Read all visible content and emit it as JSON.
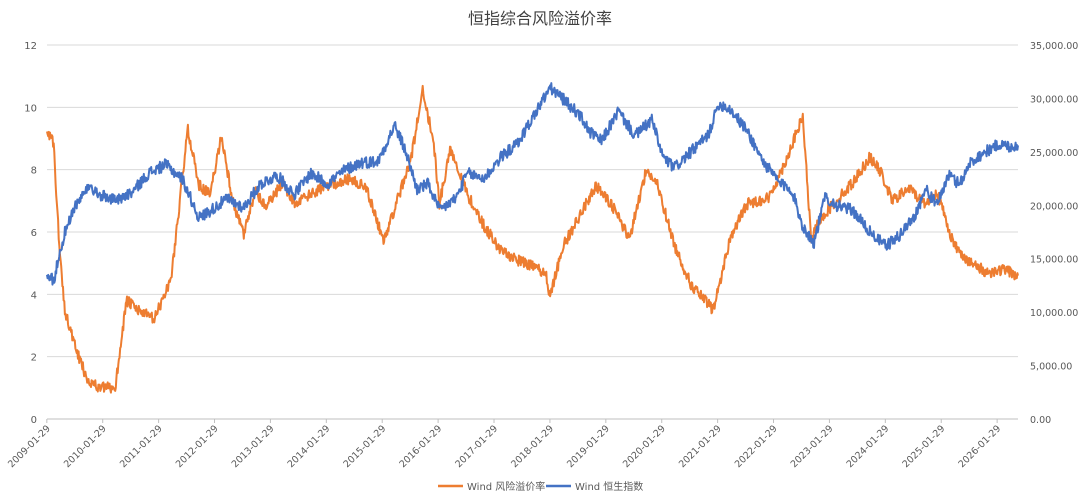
{
  "chart_data": {
    "type": "line",
    "title": "恒指综合风险溢价率",
    "x_tick_labels": [
      "2009-01-29",
      "2010-01-29",
      "2011-01-29",
      "2012-01-29",
      "2013-01-29",
      "2014-01-29",
      "2015-01-29",
      "2016-01-29",
      "2017-01-29",
      "2018-01-29",
      "2019-01-29",
      "2020-01-29",
      "2021-01-29",
      "2022-01-29",
      "2023-01-29",
      "2024-01-29",
      "2025-01-29",
      "2026-01-29"
    ],
    "x_range": [
      2009.08,
      2026.45
    ],
    "y_left": {
      "min": 0,
      "max": 12,
      "ticks": [
        "0",
        "2",
        "4",
        "6",
        "8",
        "10",
        "12"
      ]
    },
    "y_right": {
      "min": 0,
      "max": 35000,
      "ticks": [
        "0.00",
        "5,000.00",
        "10,000.00",
        "15,000.00",
        "20,000.00",
        "25,000.00",
        "30,000.00",
        "35,000.00"
      ]
    },
    "grid": true,
    "legend_position": "bottom",
    "series": [
      {
        "name": "Wind 风险溢价率",
        "axis": "left",
        "color": "#ED7D31",
        "x": [
          2009.08,
          2009.2,
          2009.3,
          2009.4,
          2009.6,
          2009.8,
          2010.0,
          2010.3,
          2010.5,
          2010.7,
          2011.0,
          2011.3,
          2011.6,
          2011.8,
          2012.0,
          2012.2,
          2012.4,
          2012.6,
          2012.8,
          2013.0,
          2013.3,
          2013.5,
          2013.8,
          2014.1,
          2014.5,
          2014.8,
          2015.1,
          2015.4,
          2015.6,
          2015.8,
          2016.0,
          2016.1,
          2016.3,
          2016.6,
          2016.9,
          2017.2,
          2017.5,
          2018.0,
          2018.08,
          2018.3,
          2018.6,
          2018.9,
          2019.2,
          2019.5,
          2019.8,
          2020.0,
          2020.3,
          2020.6,
          2021.0,
          2021.08,
          2021.3,
          2021.6,
          2022.0,
          2022.3,
          2022.6,
          2022.75,
          2022.9,
          2023.2,
          2023.5,
          2023.8,
          2024.0,
          2024.2,
          2024.5,
          2024.8,
          2025.0,
          2025.3,
          2025.6,
          2025.9,
          2026.2,
          2026.45
        ],
        "y": [
          9.3,
          8.8,
          5.5,
          3.5,
          2.2,
          1.3,
          1.0,
          1.0,
          3.8,
          3.5,
          3.2,
          4.5,
          9.3,
          7.5,
          7.2,
          9.1,
          7.0,
          5.9,
          7.3,
          6.8,
          7.6,
          6.9,
          7.2,
          7.5,
          7.7,
          7.4,
          5.7,
          7.3,
          8.4,
          10.6,
          8.8,
          6.9,
          8.7,
          7.2,
          6.2,
          5.4,
          5.1,
          4.7,
          3.9,
          5.5,
          6.5,
          7.5,
          6.8,
          5.8,
          8.0,
          7.5,
          5.6,
          4.3,
          3.5,
          4.1,
          5.8,
          6.9,
          7.1,
          8.3,
          9.7,
          5.7,
          6.4,
          7.0,
          7.6,
          8.4,
          7.9,
          7.0,
          7.4,
          6.9,
          7.3,
          5.6,
          5.0,
          4.7,
          4.8,
          4.6
        ]
      },
      {
        "name": "Wind 恒生指数",
        "axis": "right",
        "color": "#4472C4",
        "x": [
          2009.08,
          2009.2,
          2009.4,
          2009.6,
          2009.8,
          2010.0,
          2010.3,
          2010.6,
          2010.9,
          2011.2,
          2011.5,
          2011.8,
          2012.0,
          2012.3,
          2012.6,
          2012.9,
          2013.2,
          2013.5,
          2013.8,
          2014.1,
          2014.4,
          2014.7,
          2015.0,
          2015.3,
          2015.5,
          2015.7,
          2015.9,
          2016.1,
          2016.4,
          2016.6,
          2016.9,
          2017.2,
          2017.5,
          2017.8,
          2018.08,
          2018.3,
          2018.6,
          2018.8,
          2019.0,
          2019.3,
          2019.6,
          2019.9,
          2020.1,
          2020.3,
          2020.6,
          2020.9,
          2021.1,
          2021.3,
          2021.6,
          2021.9,
          2022.2,
          2022.4,
          2022.6,
          2022.8,
          2023.0,
          2023.2,
          2023.5,
          2023.8,
          2024.08,
          2024.3,
          2024.6,
          2024.8,
          2025.0,
          2025.2,
          2025.4,
          2025.6,
          2025.8,
          2026.1,
          2026.3,
          2026.45
        ],
        "y": [
          13500,
          13000,
          17500,
          20000,
          21500,
          21000,
          20500,
          21200,
          23000,
          23800,
          22500,
          18800,
          19500,
          20600,
          19800,
          22000,
          22800,
          21000,
          23000,
          22000,
          23300,
          24000,
          24100,
          27500,
          25000,
          21500,
          22000,
          19500,
          20700,
          23000,
          22500,
          24500,
          25800,
          28500,
          31000,
          30000,
          28500,
          26800,
          26000,
          28800,
          26500,
          28000,
          24500,
          23500,
          25000,
          26500,
          29500,
          29000,
          27000,
          24000,
          22000,
          21500,
          18000,
          16500,
          20800,
          20000,
          19500,
          17500,
          16200,
          17000,
          19000,
          21500,
          20000,
          22800,
          22000,
          24000,
          24800,
          25700,
          25500,
          25600
        ]
      }
    ]
  }
}
